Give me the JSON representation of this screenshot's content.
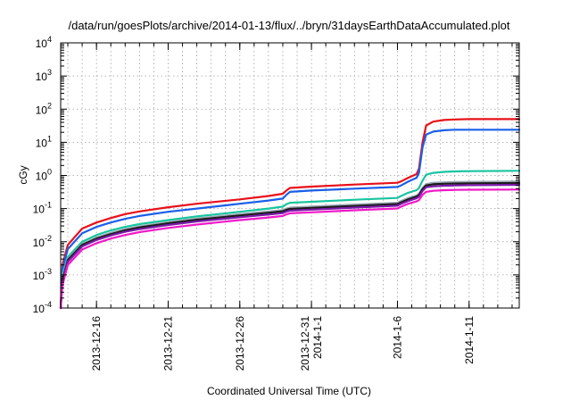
{
  "chart_data": {
    "type": "line",
    "title": "/data/run/goesPlots/archive/2014-01-13/flux/../bryn/31daysEarthDataAccumulated.plot",
    "xlabel": "Coordinated Universal Time (UTC)",
    "ylabel": "cGy",
    "x_is_date": true,
    "xlim": [
      "2013-12-13T12:00",
      "2014-01-14T12:00"
    ],
    "ylim": [
      0.0001,
      10000
    ],
    "y_scale": "log",
    "grid": true,
    "legend": "none",
    "xticks": [
      {
        "x": "2013-12-16T00:00",
        "lines": [
          "2013-12-16"
        ]
      },
      {
        "x": "2013-12-21T00:00",
        "lines": [
          "2013-12-21"
        ]
      },
      {
        "x": "2013-12-26T00:00",
        "lines": [
          "2013-12-26"
        ]
      },
      {
        "x": "2013-12-31T00:00",
        "lines": [
          "2013-12-31",
          "2014-1-1"
        ]
      },
      {
        "x": "2014-01-06T00:00",
        "lines": [
          "2014-1-6"
        ]
      },
      {
        "x": "2014-01-11T00:00",
        "lines": [
          "2014-1-11"
        ]
      }
    ],
    "yticks": [
      {
        "base": "10",
        "exp": "-4",
        "value": 0.0001
      },
      {
        "base": "10",
        "exp": "-3",
        "value": 0.001
      },
      {
        "base": "10",
        "exp": "-2",
        "value": 0.01
      },
      {
        "base": "10",
        "exp": "-1",
        "value": 0.1
      },
      {
        "base": "10",
        "exp": "0",
        "value": 1
      },
      {
        "base": "10",
        "exp": "1",
        "value": 10
      },
      {
        "base": "10",
        "exp": "2",
        "value": 100
      },
      {
        "base": "10",
        "exp": "3",
        "value": 1000
      },
      {
        "base": "10",
        "exp": "4",
        "value": 10000
      }
    ],
    "series": [
      {
        "color": "#e8101a",
        "points": [
          [
            "2013-12-13T12:00",
            0.0001
          ],
          [
            "2013-12-13T15:00",
            0.002
          ],
          [
            "2013-12-14T00:00",
            0.008
          ],
          [
            "2013-12-15T00:00",
            0.025
          ],
          [
            "2013-12-16T00:00",
            0.038
          ],
          [
            "2013-12-17T00:00",
            0.052
          ],
          [
            "2013-12-18T00:00",
            0.068
          ],
          [
            "2013-12-19T00:00",
            0.082
          ],
          [
            "2013-12-21T00:00",
            0.11
          ],
          [
            "2013-12-23T00:00",
            0.14
          ],
          [
            "2013-12-26T00:00",
            0.19
          ],
          [
            "2013-12-28T00:00",
            0.24
          ],
          [
            "2013-12-29T00:00",
            0.28
          ],
          [
            "2013-12-29T06:00",
            0.35
          ],
          [
            "2013-12-29T12:00",
            0.42
          ],
          [
            "2013-12-31T00:00",
            0.46
          ],
          [
            "2014-01-03T00:00",
            0.53
          ],
          [
            "2014-01-06T00:00",
            0.6
          ],
          [
            "2014-01-06T06:00",
            0.66
          ],
          [
            "2014-01-06T18:00",
            0.85
          ],
          [
            "2014-01-07T08:00",
            1.1
          ],
          [
            "2014-01-07T12:00",
            1.6
          ],
          [
            "2014-01-07T18:00",
            10
          ],
          [
            "2014-01-08T00:00",
            32
          ],
          [
            "2014-01-08T12:00",
            42
          ],
          [
            "2014-01-09T06:00",
            47
          ],
          [
            "2014-01-10T00:00",
            49
          ],
          [
            "2014-01-11T00:00",
            50
          ],
          [
            "2014-01-14T12:00",
            50
          ]
        ]
      },
      {
        "color": "#1a5fe8",
        "points": [
          [
            "2013-12-13T12:00",
            0.0001
          ],
          [
            "2013-12-13T15:00",
            0.0015
          ],
          [
            "2013-12-14T00:00",
            0.006
          ],
          [
            "2013-12-15T00:00",
            0.018
          ],
          [
            "2013-12-16T00:00",
            0.028
          ],
          [
            "2013-12-17T00:00",
            0.038
          ],
          [
            "2013-12-18T00:00",
            0.049
          ],
          [
            "2013-12-19T00:00",
            0.06
          ],
          [
            "2013-12-21T00:00",
            0.08
          ],
          [
            "2013-12-23T00:00",
            0.1
          ],
          [
            "2013-12-26T00:00",
            0.14
          ],
          [
            "2013-12-28T00:00",
            0.175
          ],
          [
            "2013-12-29T00:00",
            0.2
          ],
          [
            "2013-12-29T06:00",
            0.26
          ],
          [
            "2013-12-29T12:00",
            0.32
          ],
          [
            "2013-12-31T00:00",
            0.35
          ],
          [
            "2014-01-03T00:00",
            0.4
          ],
          [
            "2014-01-06T00:00",
            0.45
          ],
          [
            "2014-01-06T06:00",
            0.5
          ],
          [
            "2014-01-06T18:00",
            0.65
          ],
          [
            "2014-01-07T08:00",
            0.85
          ],
          [
            "2014-01-07T12:00",
            1.2
          ],
          [
            "2014-01-07T18:00",
            7
          ],
          [
            "2014-01-08T00:00",
            17
          ],
          [
            "2014-01-08T12:00",
            21
          ],
          [
            "2014-01-09T06:00",
            23
          ],
          [
            "2014-01-10T00:00",
            24
          ],
          [
            "2014-01-11T00:00",
            24
          ],
          [
            "2014-01-14T12:00",
            24
          ]
        ]
      },
      {
        "color": "#19c4a0",
        "points": [
          [
            "2013-12-13T12:00",
            0.0001
          ],
          [
            "2013-12-13T15:00",
            0.001
          ],
          [
            "2013-12-14T00:00",
            0.0035
          ],
          [
            "2013-12-15T00:00",
            0.01
          ],
          [
            "2013-12-16T00:00",
            0.016
          ],
          [
            "2013-12-17T00:00",
            0.022
          ],
          [
            "2013-12-18T00:00",
            0.028
          ],
          [
            "2013-12-19T00:00",
            0.034
          ],
          [
            "2013-12-21T00:00",
            0.045
          ],
          [
            "2013-12-23T00:00",
            0.058
          ],
          [
            "2013-12-26T00:00",
            0.08
          ],
          [
            "2013-12-28T00:00",
            0.1
          ],
          [
            "2013-12-29T00:00",
            0.115
          ],
          [
            "2013-12-29T06:00",
            0.135
          ],
          [
            "2013-12-29T12:00",
            0.15
          ],
          [
            "2013-12-31T00:00",
            0.16
          ],
          [
            "2014-01-03T00:00",
            0.185
          ],
          [
            "2014-01-06T00:00",
            0.21
          ],
          [
            "2014-01-06T06:00",
            0.24
          ],
          [
            "2014-01-06T18:00",
            0.3
          ],
          [
            "2014-01-07T08:00",
            0.36
          ],
          [
            "2014-01-07T12:00",
            0.42
          ],
          [
            "2014-01-07T18:00",
            0.7
          ],
          [
            "2014-01-08T00:00",
            1.05
          ],
          [
            "2014-01-08T12:00",
            1.2
          ],
          [
            "2014-01-09T06:00",
            1.28
          ],
          [
            "2014-01-10T00:00",
            1.32
          ],
          [
            "2014-01-11T00:00",
            1.35
          ],
          [
            "2014-01-14T12:00",
            1.38
          ]
        ]
      },
      {
        "color": "#9aa6b2",
        "points": [
          [
            "2013-12-13T12:00",
            0.0001
          ],
          [
            "2013-12-13T15:00",
            0.0008
          ],
          [
            "2013-12-14T00:00",
            0.003
          ],
          [
            "2013-12-15T00:00",
            0.0085
          ],
          [
            "2013-12-16T00:00",
            0.0135
          ],
          [
            "2013-12-17T00:00",
            0.0185
          ],
          [
            "2013-12-18T00:00",
            0.024
          ],
          [
            "2013-12-19T00:00",
            0.029
          ],
          [
            "2013-12-21T00:00",
            0.039
          ],
          [
            "2013-12-23T00:00",
            0.05
          ],
          [
            "2013-12-26T00:00",
            0.068
          ],
          [
            "2013-12-28T00:00",
            0.082
          ],
          [
            "2013-12-29T00:00",
            0.09
          ],
          [
            "2013-12-29T06:00",
            0.1
          ],
          [
            "2013-12-29T12:00",
            0.107
          ],
          [
            "2013-12-31T00:00",
            0.115
          ],
          [
            "2014-01-03T00:00",
            0.132
          ],
          [
            "2014-01-06T00:00",
            0.15
          ],
          [
            "2014-01-06T06:00",
            0.17
          ],
          [
            "2014-01-06T18:00",
            0.21
          ],
          [
            "2014-01-07T08:00",
            0.25
          ],
          [
            "2014-01-07T12:00",
            0.28
          ],
          [
            "2014-01-07T18:00",
            0.42
          ],
          [
            "2014-01-08T00:00",
            0.55
          ],
          [
            "2014-01-08T12:00",
            0.6
          ],
          [
            "2014-01-09T06:00",
            0.62
          ],
          [
            "2014-01-10T00:00",
            0.63
          ],
          [
            "2014-01-11T00:00",
            0.64
          ],
          [
            "2014-01-14T12:00",
            0.65
          ]
        ]
      },
      {
        "color": "#1a1a1a",
        "points": [
          [
            "2013-12-13T12:00",
            0.0001
          ],
          [
            "2013-12-13T15:00",
            0.0007
          ],
          [
            "2013-12-14T00:00",
            0.0028
          ],
          [
            "2013-12-15T00:00",
            0.008
          ],
          [
            "2013-12-16T00:00",
            0.0125
          ],
          [
            "2013-12-17T00:00",
            0.017
          ],
          [
            "2013-12-18T00:00",
            0.022
          ],
          [
            "2013-12-19T00:00",
            0.027
          ],
          [
            "2013-12-21T00:00",
            0.036
          ],
          [
            "2013-12-23T00:00",
            0.046
          ],
          [
            "2013-12-26T00:00",
            0.062
          ],
          [
            "2013-12-28T00:00",
            0.075
          ],
          [
            "2013-12-29T00:00",
            0.083
          ],
          [
            "2013-12-29T06:00",
            0.092
          ],
          [
            "2013-12-29T12:00",
            0.098
          ],
          [
            "2013-12-31T00:00",
            0.105
          ],
          [
            "2014-01-03T00:00",
            0.12
          ],
          [
            "2014-01-06T00:00",
            0.137
          ],
          [
            "2014-01-06T06:00",
            0.155
          ],
          [
            "2014-01-06T18:00",
            0.19
          ],
          [
            "2014-01-07T08:00",
            0.23
          ],
          [
            "2014-01-07T12:00",
            0.26
          ],
          [
            "2014-01-07T18:00",
            0.39
          ],
          [
            "2014-01-08T00:00",
            0.5
          ],
          [
            "2014-01-08T12:00",
            0.54
          ],
          [
            "2014-01-09T06:00",
            0.56
          ],
          [
            "2014-01-10T00:00",
            0.57
          ],
          [
            "2014-01-11T00:00",
            0.58
          ],
          [
            "2014-01-14T12:00",
            0.59
          ]
        ]
      },
      {
        "color": "#7a1aa8",
        "points": [
          [
            "2013-12-13T12:00",
            0.0001
          ],
          [
            "2013-12-13T15:00",
            0.0006
          ],
          [
            "2013-12-14T00:00",
            0.0025
          ],
          [
            "2013-12-15T00:00",
            0.0072
          ],
          [
            "2013-12-16T00:00",
            0.0113
          ],
          [
            "2013-12-17T00:00",
            0.0155
          ],
          [
            "2013-12-18T00:00",
            0.02
          ],
          [
            "2013-12-19T00:00",
            0.024
          ],
          [
            "2013-12-21T00:00",
            0.032
          ],
          [
            "2013-12-23T00:00",
            0.041
          ],
          [
            "2013-12-26T00:00",
            0.055
          ],
          [
            "2013-12-28T00:00",
            0.066
          ],
          [
            "2013-12-29T00:00",
            0.073
          ],
          [
            "2013-12-29T06:00",
            0.081
          ],
          [
            "2013-12-29T12:00",
            0.087
          ],
          [
            "2013-12-31T00:00",
            0.093
          ],
          [
            "2014-01-03T00:00",
            0.107
          ],
          [
            "2014-01-06T00:00",
            0.122
          ],
          [
            "2014-01-06T06:00",
            0.138
          ],
          [
            "2014-01-06T18:00",
            0.17
          ],
          [
            "2014-01-07T08:00",
            0.205
          ],
          [
            "2014-01-07T12:00",
            0.23
          ],
          [
            "2014-01-07T18:00",
            0.34
          ],
          [
            "2014-01-08T00:00",
            0.44
          ],
          [
            "2014-01-08T12:00",
            0.47
          ],
          [
            "2014-01-09T06:00",
            0.49
          ],
          [
            "2014-01-10T00:00",
            0.5
          ],
          [
            "2014-01-11T00:00",
            0.51
          ],
          [
            "2014-01-14T12:00",
            0.52
          ]
        ]
      },
      {
        "color": "#f019c8",
        "points": [
          [
            "2013-12-13T12:00",
            0.0001
          ],
          [
            "2013-12-13T15:00",
            0.0005
          ],
          [
            "2013-12-14T00:00",
            0.002
          ],
          [
            "2013-12-15T00:00",
            0.0058
          ],
          [
            "2013-12-16T00:00",
            0.009
          ],
          [
            "2013-12-17T00:00",
            0.0125
          ],
          [
            "2013-12-18T00:00",
            0.016
          ],
          [
            "2013-12-19T00:00",
            0.0195
          ],
          [
            "2013-12-21T00:00",
            0.026
          ],
          [
            "2013-12-23T00:00",
            0.033
          ],
          [
            "2013-12-26T00:00",
            0.045
          ],
          [
            "2013-12-28T00:00",
            0.054
          ],
          [
            "2013-12-29T00:00",
            0.06
          ],
          [
            "2013-12-29T06:00",
            0.067
          ],
          [
            "2013-12-29T12:00",
            0.072
          ],
          [
            "2013-12-31T00:00",
            0.077
          ],
          [
            "2014-01-03T00:00",
            0.089
          ],
          [
            "2014-01-06T00:00",
            0.101
          ],
          [
            "2014-01-06T06:00",
            0.114
          ],
          [
            "2014-01-06T18:00",
            0.14
          ],
          [
            "2014-01-07T08:00",
            0.165
          ],
          [
            "2014-01-07T12:00",
            0.18
          ],
          [
            "2014-01-07T18:00",
            0.26
          ],
          [
            "2014-01-08T00:00",
            0.32
          ],
          [
            "2014-01-08T12:00",
            0.345
          ],
          [
            "2014-01-09T06:00",
            0.36
          ],
          [
            "2014-01-10T00:00",
            0.365
          ],
          [
            "2014-01-11T00:00",
            0.37
          ],
          [
            "2014-01-14T12:00",
            0.375
          ]
        ]
      }
    ]
  }
}
